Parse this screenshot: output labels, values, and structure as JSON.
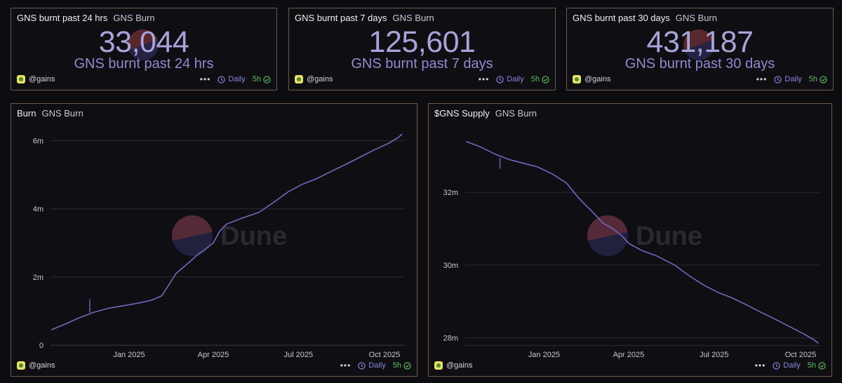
{
  "counters": [
    {
      "title": "GNS burnt past 24 hrs",
      "subtitle": "GNS Burn",
      "value": "33,044",
      "label": "GNS burnt past 24 hrs"
    },
    {
      "title": "GNS burnt past 7 days",
      "subtitle": "GNS Burn",
      "value": "125,601",
      "label": "GNS burnt past 7 days"
    },
    {
      "title": "GNS burnt past 30 days",
      "subtitle": "GNS Burn",
      "value": "431,187",
      "label": "GNS burnt past 30 days"
    }
  ],
  "footer": {
    "author": "@gains",
    "more": "•••",
    "schedule": "Daily",
    "freshness": "5h"
  },
  "watermark": "Dune",
  "colors": {
    "line": "#6f6abf",
    "accent": "#8a86e0",
    "ok": "#5fbf5f",
    "border": "#6e5a4c"
  },
  "chart_data": [
    {
      "type": "line",
      "title": "Burn",
      "subtitle": "GNS Burn",
      "xlabel": "",
      "ylabel": "",
      "x_ticks": [
        "Jan 2025",
        "Apr 2025",
        "Jul 2025",
        "Oct 2025"
      ],
      "y_ticks": [
        "0",
        "2m",
        "4m",
        "6m"
      ],
      "y_tick_values": [
        0,
        2000000,
        4000000,
        6000000
      ],
      "ylim": [
        0,
        6300000
      ],
      "xlim": [
        "2024-10-09",
        "2025-10-22"
      ],
      "grid": true,
      "series": [
        {
          "x": [
            "2024-10-10",
            "2024-10-25",
            "2024-11-10",
            "2024-11-25",
            "2024-12-10",
            "2024-12-25",
            "2025-01-10",
            "2025-01-25",
            "2025-02-05",
            "2025-02-12",
            "2025-02-20",
            "2025-03-05",
            "2025-03-15",
            "2025-03-25",
            "2025-04-01",
            "2025-04-08",
            "2025-04-15",
            "2025-05-01",
            "2025-05-20",
            "2025-06-05",
            "2025-06-20",
            "2025-07-05",
            "2025-07-20",
            "2025-08-05",
            "2025-08-20",
            "2025-09-05",
            "2025-09-20",
            "2025-10-05",
            "2025-10-15",
            "2025-10-20"
          ],
          "values": [
            450000,
            620000,
            820000,
            970000,
            1080000,
            1150000,
            1230000,
            1320000,
            1450000,
            1750000,
            2100000,
            2400000,
            2650000,
            2850000,
            3000000,
            3350000,
            3550000,
            3720000,
            3900000,
            4200000,
            4500000,
            4720000,
            4880000,
            5100000,
            5300000,
            5520000,
            5730000,
            5920000,
            6080000,
            6200000
          ],
          "spikes": [
            {
              "x": "2024-11-20",
              "from": 950000,
              "to": 1350000
            }
          ]
        }
      ]
    },
    {
      "type": "line",
      "title": "$GNS Supply",
      "subtitle": "GNS Burn",
      "xlabel": "",
      "ylabel": "",
      "x_ticks": [
        "Jan 2025",
        "Apr 2025",
        "Jul 2025",
        "Oct 2025"
      ],
      "y_ticks": [
        "28m",
        "30m",
        "32m"
      ],
      "y_tick_values": [
        28000000,
        30000000,
        32000000
      ],
      "ylim": [
        27800000,
        33700000
      ],
      "xlim": [
        "2024-10-09",
        "2025-10-22"
      ],
      "grid": true,
      "series": [
        {
          "x": [
            "2024-10-10",
            "2024-10-25",
            "2024-11-10",
            "2024-11-25",
            "2024-12-10",
            "2024-12-25",
            "2025-01-10",
            "2025-01-25",
            "2025-02-05",
            "2025-02-12",
            "2025-02-20",
            "2025-03-05",
            "2025-03-15",
            "2025-03-25",
            "2025-04-01",
            "2025-04-08",
            "2025-04-15",
            "2025-05-01",
            "2025-05-20",
            "2025-06-05",
            "2025-06-20",
            "2025-07-05",
            "2025-07-20",
            "2025-08-05",
            "2025-08-20",
            "2025-09-05",
            "2025-09-20",
            "2025-10-05",
            "2025-10-15",
            "2025-10-20"
          ],
          "values": [
            33400000,
            33250000,
            33050000,
            32900000,
            32800000,
            32700000,
            32500000,
            32250000,
            31900000,
            31700000,
            31500000,
            31150000,
            31000000,
            30800000,
            30600000,
            30500000,
            30400000,
            30250000,
            30000000,
            29700000,
            29450000,
            29250000,
            29100000,
            28900000,
            28700000,
            28500000,
            28300000,
            28100000,
            27950000,
            27850000
          ],
          "spikes": [
            {
              "x": "2024-11-15",
              "from": 32950000,
              "to": 32650000
            }
          ]
        }
      ]
    }
  ]
}
